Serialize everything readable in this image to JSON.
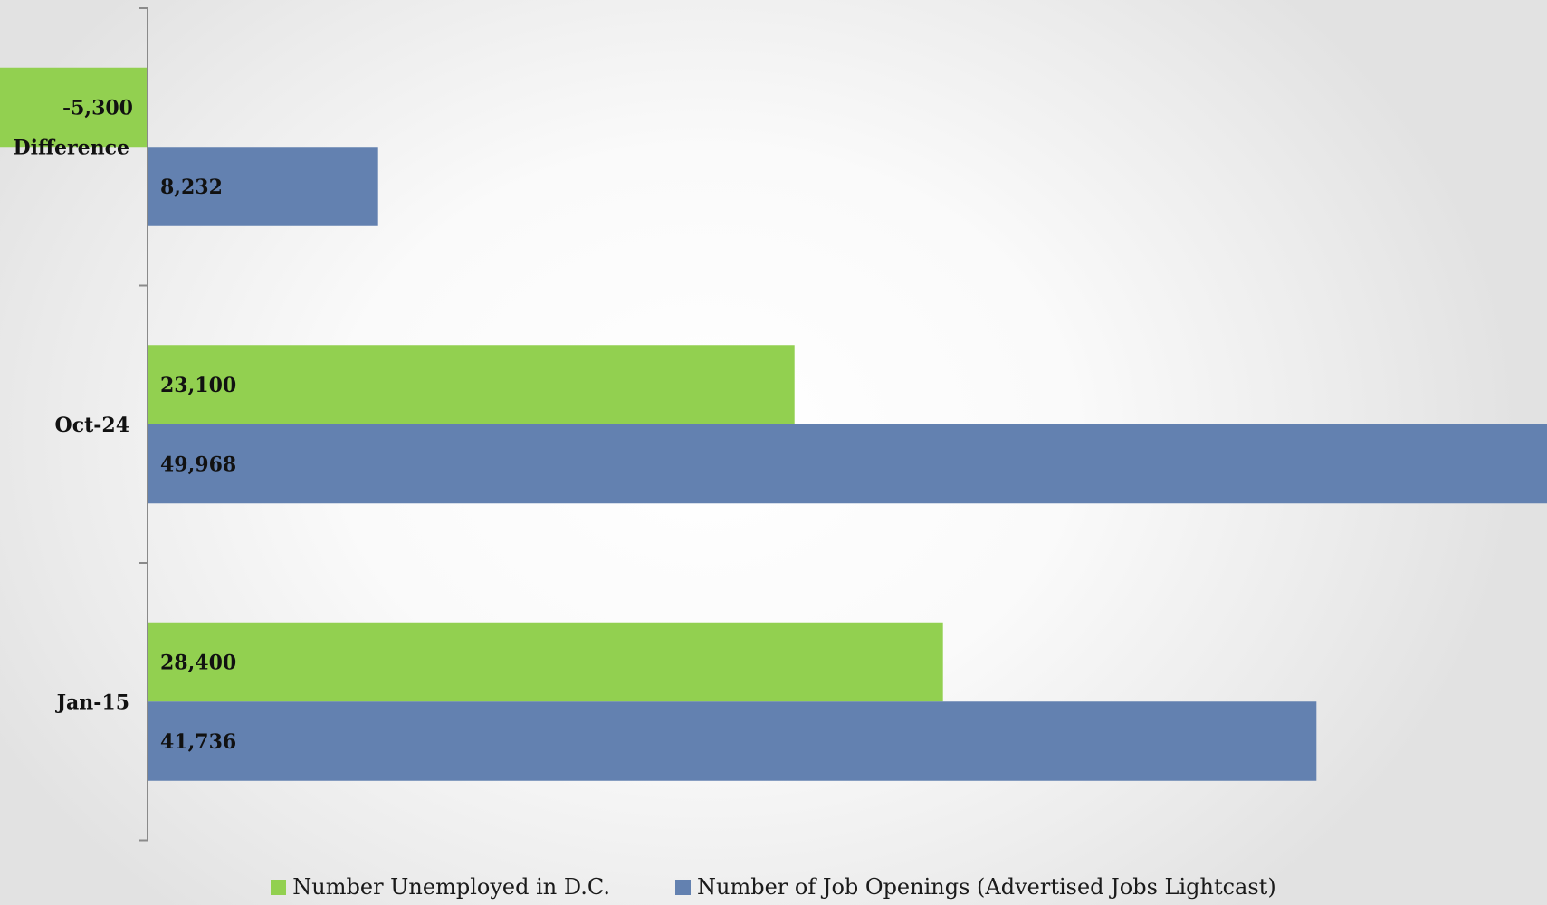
{
  "chart_data": {
    "type": "bar",
    "orientation": "horizontal",
    "categories": [
      "Difference",
      "Oct-24",
      "Jan-15"
    ],
    "series": [
      {
        "name": "Number Unemployed in D.C.",
        "color": "#92d050",
        "values": [
          -5300,
          23100,
          28400
        ],
        "labels": [
          "-5,300",
          "23,100",
          "28,400"
        ]
      },
      {
        "name": "Number of Job Openings (Advertised Jobs Lightcast)",
        "color": "#6381b0",
        "values": [
          8232,
          49968,
          41736
        ],
        "labels": [
          "8,232",
          "49,968",
          "41,736"
        ]
      }
    ],
    "xlim": [
      -5300,
      49968
    ],
    "grid": false,
    "legend_position": "bottom"
  }
}
